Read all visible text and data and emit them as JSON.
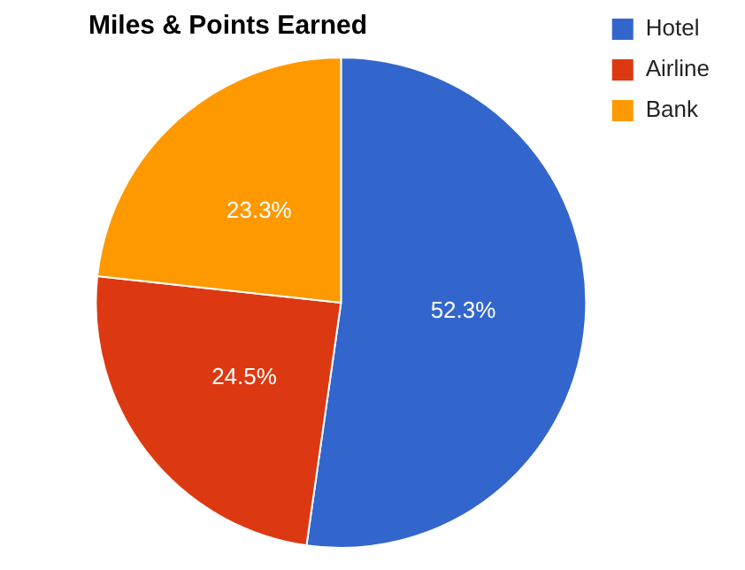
{
  "chart_data": {
    "type": "pie",
    "title": "Miles & Points Earned",
    "categories": [
      "Hotel",
      "Airline",
      "Bank"
    ],
    "values": [
      52.3,
      24.5,
      23.3
    ],
    "value_labels": [
      "52.3%",
      "24.5%",
      "23.3%"
    ],
    "colors": [
      "#3366cc",
      "#dc3912",
      "#ff9900"
    ],
    "legend": "top right"
  }
}
